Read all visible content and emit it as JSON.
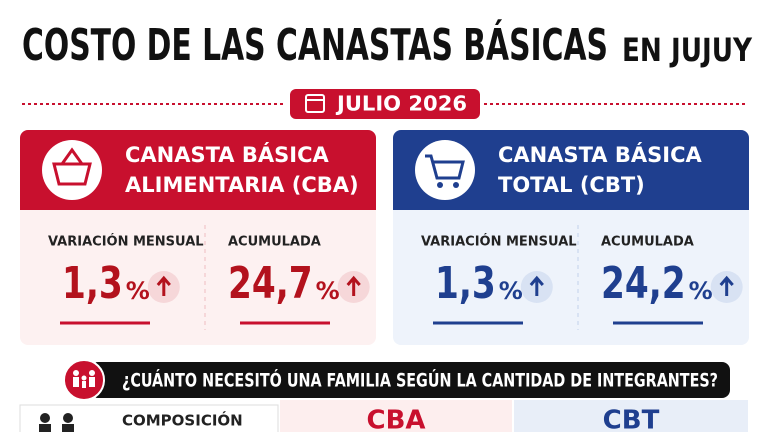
{
  "header": {
    "title": "COSTO DE LAS CANASTAS BÁSICAS",
    "title_suffix": "EN JUJUY",
    "date": "JULIO 2026"
  },
  "cards": [
    {
      "title_lines": [
        "CANASTA BÁSICA",
        "ALIMENTARIA (CBA)"
      ],
      "stats": [
        {
          "label": "VARIACIÓN MENSUAL",
          "value": "1,3",
          "unit": "%"
        },
        {
          "label": "ACUMULADA",
          "value": "24,7",
          "unit": "%"
        }
      ]
    },
    {
      "title_lines": [
        "CANASTA BÁSICA",
        "TOTAL (CBT)"
      ],
      "stats": [
        {
          "label": "VARIACIÓN MENSUAL",
          "value": "1,3",
          "unit": "%"
        },
        {
          "label": "ACUMULADA",
          "value": "24,2",
          "unit": "%"
        }
      ]
    }
  ],
  "question": "¿CUÁNTO NECESITÓ UNA FAMILIA SEGÚN LA CANTIDAD DE INTEGRANTES?",
  "table": {
    "headers": [
      "COMPOSICIÓN",
      "CBA",
      "CBT"
    ]
  }
}
